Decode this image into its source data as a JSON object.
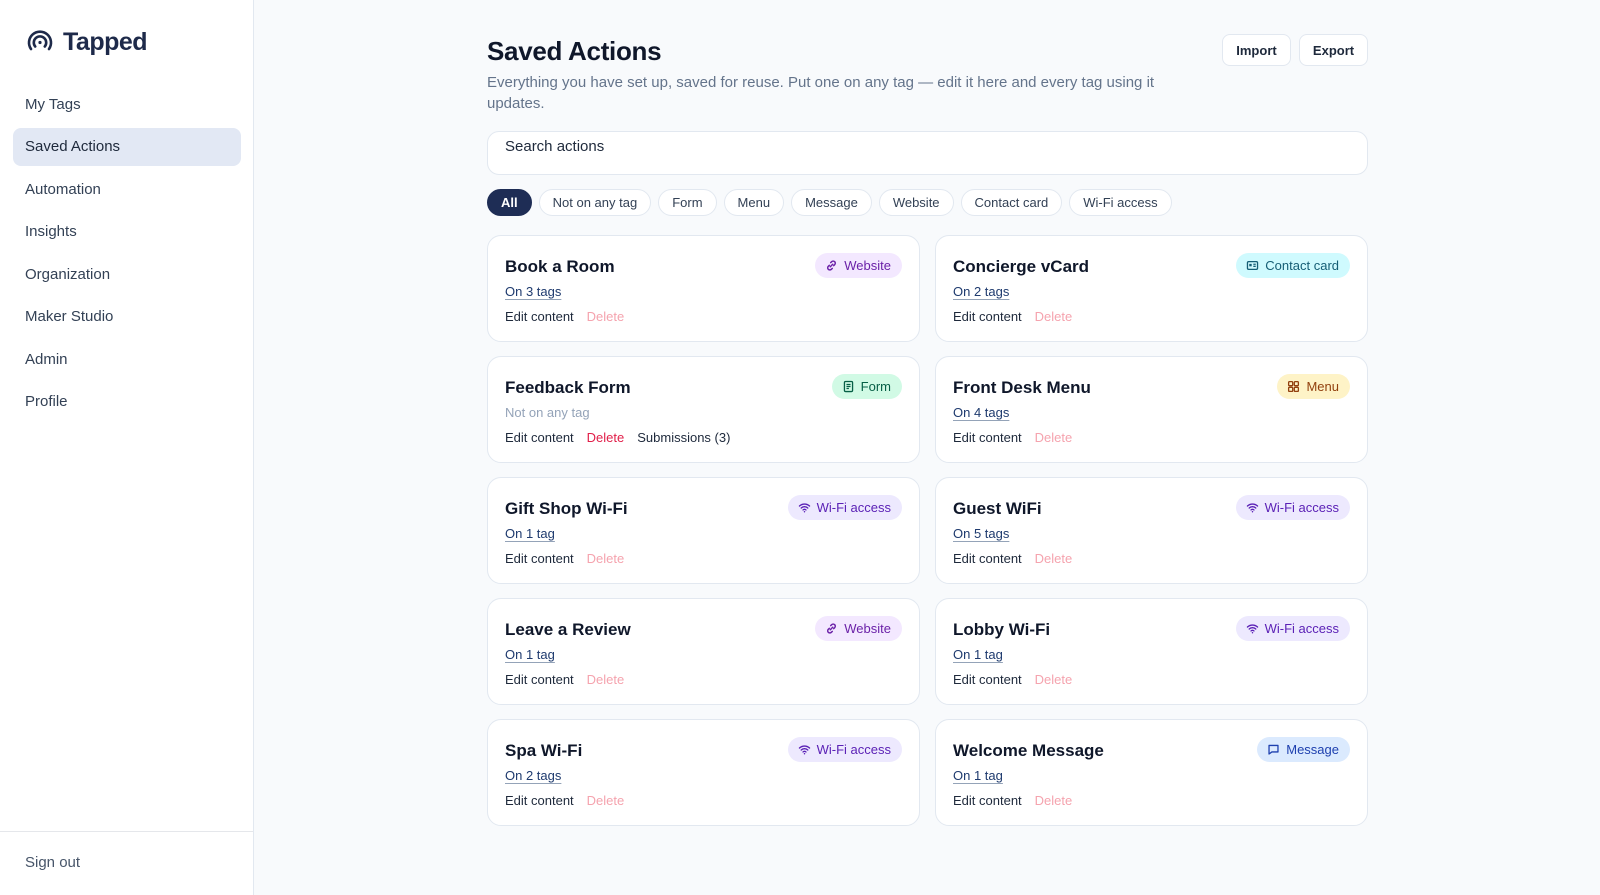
{
  "sidebar": {
    "brand": "Tapped",
    "nav": [
      {
        "label": "My Tags",
        "active": false
      },
      {
        "label": "Saved Actions",
        "active": true
      },
      {
        "label": "Automation",
        "active": false
      },
      {
        "label": "Insights",
        "active": false
      },
      {
        "label": "Organization",
        "active": false
      },
      {
        "label": "Maker Studio",
        "active": false
      },
      {
        "label": "Admin",
        "active": false
      },
      {
        "label": "Profile",
        "active": false
      }
    ],
    "sign_out": "Sign out"
  },
  "header": {
    "title": "Saved Actions",
    "description": "Everything you have set up, saved for reuse. Put one on any tag — edit it here and every tag using it updates.",
    "import_label": "Import",
    "export_label": "Export"
  },
  "search": {
    "placeholder": "Search actions",
    "value": ""
  },
  "filters": [
    {
      "label": "All",
      "active": true
    },
    {
      "label": "Not on any tag",
      "active": false
    },
    {
      "label": "Form",
      "active": false
    },
    {
      "label": "Menu",
      "active": false
    },
    {
      "label": "Message",
      "active": false
    },
    {
      "label": "Website",
      "active": false
    },
    {
      "label": "Contact card",
      "active": false
    },
    {
      "label": "Wi-Fi access",
      "active": false
    }
  ],
  "actions": {
    "edit_label": "Edit content",
    "delete_label": "Delete",
    "items": [
      {
        "title": "Book a Room",
        "type": "Website",
        "icon": "link-icon",
        "tags": "On 3 tags",
        "on_tag": true
      },
      {
        "title": "Concierge vCard",
        "type": "Contact card",
        "icon": "contact-card-icon",
        "tags": "On 2 tags",
        "on_tag": true
      },
      {
        "title": "Feedback Form",
        "type": "Form",
        "icon": "form-icon",
        "tags": "Not on any tag",
        "on_tag": false,
        "submissions": "Submissions (3)"
      },
      {
        "title": "Front Desk Menu",
        "type": "Menu",
        "icon": "menu-grid-icon",
        "tags": "On 4 tags",
        "on_tag": true
      },
      {
        "title": "Gift Shop Wi-Fi",
        "type": "Wi-Fi access",
        "icon": "wifi-icon",
        "tags": "On 1 tag",
        "on_tag": true
      },
      {
        "title": "Guest WiFi",
        "type": "Wi-Fi access",
        "icon": "wifi-icon",
        "tags": "On 5 tags",
        "on_tag": true
      },
      {
        "title": "Leave a Review",
        "type": "Website",
        "icon": "link-icon",
        "tags": "On 1 tag",
        "on_tag": true
      },
      {
        "title": "Lobby Wi-Fi",
        "type": "Wi-Fi access",
        "icon": "wifi-icon",
        "tags": "On 1 tag",
        "on_tag": true
      },
      {
        "title": "Spa Wi-Fi",
        "type": "Wi-Fi access",
        "icon": "wifi-icon",
        "tags": "On 2 tags",
        "on_tag": true
      },
      {
        "title": "Welcome Message",
        "type": "Message",
        "icon": "message-icon",
        "tags": "On 1 tag",
        "on_tag": true
      }
    ]
  }
}
